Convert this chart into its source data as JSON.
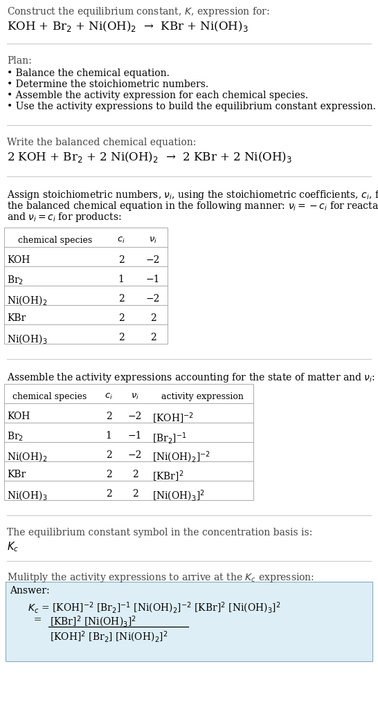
{
  "bg_color": "#ffffff",
  "section_bg": "#ddeef6",
  "title_line1": "Construct the equilibrium constant, $K$, expression for:",
  "title_line2": "KOH + Br$_2$ + Ni(OH)$_2$  →  KBr + Ni(OH)$_3$",
  "plan_header": "Plan:",
  "plan_items": [
    "• Balance the chemical equation.",
    "• Determine the stoichiometric numbers.",
    "• Assemble the activity expression for each chemical species.",
    "• Use the activity expressions to build the equilibrium constant expression."
  ],
  "balanced_header": "Write the balanced chemical equation:",
  "balanced_eq": "2 KOH + Br$_2$ + 2 Ni(OH)$_2$  →  2 KBr + 2 Ni(OH)$_3$",
  "stoich_header_parts": [
    "Assign stoichiometric numbers, $\\nu_i$, using the stoichiometric coefficients, $c_i$, from",
    "the balanced chemical equation in the following manner: $\\nu_i = -c_i$ for reactants",
    "and $\\nu_i = c_i$ for products:"
  ],
  "table1_cols": [
    "chemical species",
    "$c_i$",
    "$\\nu_i$"
  ],
  "table1_rows": [
    [
      "KOH",
      "2",
      "−2"
    ],
    [
      "Br$_2$",
      "1",
      "−1"
    ],
    [
      "Ni(OH)$_2$",
      "2",
      "−2"
    ],
    [
      "KBr",
      "2",
      "2"
    ],
    [
      "Ni(OH)$_3$",
      "2",
      "2"
    ]
  ],
  "activity_header": "Assemble the activity expressions accounting for the state of matter and $\\nu_i$:",
  "table2_cols": [
    "chemical species",
    "$c_i$",
    "$\\nu_i$",
    "activity expression"
  ],
  "table2_rows": [
    [
      "KOH",
      "2",
      "−2",
      "[KOH]$^{-2}$"
    ],
    [
      "Br$_2$",
      "1",
      "−1",
      "[Br$_2$]$^{-1}$"
    ],
    [
      "Ni(OH)$_2$",
      "2",
      "−2",
      "[Ni(OH)$_2$]$^{-2}$"
    ],
    [
      "KBr",
      "2",
      "2",
      "[KBr]$^2$"
    ],
    [
      "Ni(OH)$_3$",
      "2",
      "2",
      "[Ni(OH)$_3$]$^2$"
    ]
  ],
  "kc_header": "The equilibrium constant symbol in the concentration basis is:",
  "kc_symbol": "$K_c$",
  "multiply_header": "Mulitply the activity expressions to arrive at the $K_c$ expression:",
  "answer_label": "Answer:",
  "answer_line1": "$K_c$ = [KOH]$^{-2}$ [Br$_2$]$^{-1}$ [Ni(OH)$_2$]$^{-2}$ [KBr]$^2$ [Ni(OH)$_3$]$^2$",
  "answer_num": "[KBr]$^2$ [Ni(OH)$_3$]$^2$",
  "answer_den": "[KOH]$^2$ [Br$_2$] [Ni(OH)$_2$]$^2$",
  "font_size": 10.5
}
